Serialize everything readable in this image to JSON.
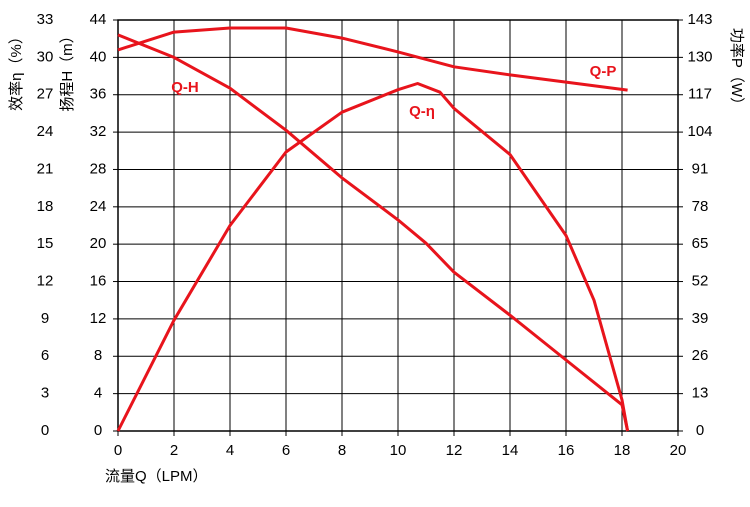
{
  "chart_data": {
    "type": "line",
    "x_label": "流量Q（LPM）",
    "y_label": "扬程H（m）",
    "y2_label": "功率P（W）",
    "y3_label": "效率η（%）",
    "xlim": [
      0,
      20
    ],
    "xticks": [
      0,
      2,
      4,
      6,
      8,
      10,
      12,
      14,
      16,
      18,
      20
    ],
    "ylim": [
      0,
      44
    ],
    "yticks": [
      0,
      4,
      8,
      12,
      16,
      20,
      24,
      28,
      32,
      36,
      40,
      44
    ],
    "y2lim": [
      0,
      143
    ],
    "y2ticks": [
      0,
      13,
      26,
      39,
      52,
      65,
      78,
      91,
      104,
      117,
      130,
      143
    ],
    "y3lim": [
      0,
      33
    ],
    "y3ticks": [
      0,
      3,
      6,
      9,
      12,
      15,
      18,
      21,
      24,
      27,
      30,
      33
    ],
    "grid": true,
    "series": [
      {
        "name": "Q-H",
        "color": "#e8141c",
        "axis": "y",
        "x": [
          0,
          2,
          4,
          6,
          8,
          10,
          11,
          12,
          14,
          16,
          18,
          18.2
        ],
        "values": [
          42.4,
          40,
          36.7,
          32.2,
          27.1,
          22.6,
          20.1,
          17,
          12.4,
          7.6,
          2.8,
          0
        ]
      },
      {
        "name": "Q-η",
        "color": "#e8141c",
        "axis": "y3",
        "x": [
          0,
          2,
          4,
          6,
          8,
          10,
          10.7,
          11.5,
          12,
          14,
          16,
          17,
          18,
          18.2
        ],
        "values": [
          0,
          8.9,
          16.5,
          22.4,
          25.6,
          27.4,
          27.9,
          27.2,
          25.9,
          22.2,
          15.7,
          10.5,
          2.5,
          0
        ]
      },
      {
        "name": "Q-P",
        "color": "#e8141c",
        "axis": "y2",
        "x": [
          0,
          2,
          4,
          6,
          8,
          10,
          12,
          14,
          16,
          18.2
        ],
        "values": [
          132.6,
          138.8,
          140.2,
          140.2,
          136.7,
          131.9,
          126.7,
          123.9,
          121.4,
          118.6
        ]
      }
    ]
  }
}
